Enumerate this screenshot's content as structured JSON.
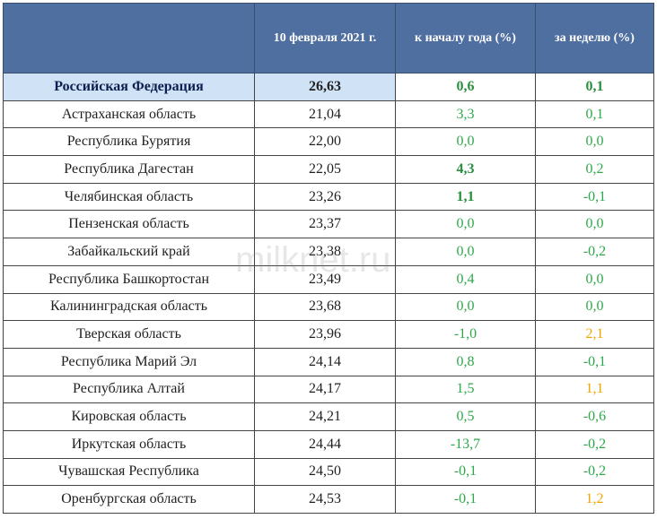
{
  "header": {
    "col_region": "",
    "col_price": "10 февраля 2021 г.",
    "col_year": "к началу года (%)",
    "col_week": "за неделю (%)"
  },
  "rows": [
    {
      "region": "Российская Федерация",
      "price": "26,63",
      "year": "0,6",
      "week": "0,1",
      "highlight": true,
      "year_style": "green-bold",
      "week_style": "green-bold"
    },
    {
      "region": "Астраханская область",
      "price": "21,04",
      "year": "3,3",
      "week": "0,1",
      "year_style": "green",
      "week_style": "green"
    },
    {
      "region": "Республика Бурятия",
      "price": "22,00",
      "year": "0,0",
      "week": "0,0",
      "year_style": "green",
      "week_style": "green"
    },
    {
      "region": "Республика Дагестан",
      "price": "22,05",
      "year": "4,3",
      "week": "0,2",
      "year_style": "green-bold",
      "week_style": "green"
    },
    {
      "region": "Челябинская область",
      "price": "23,26",
      "year": "1,1",
      "week": "-0,1",
      "year_style": "green-bold",
      "week_style": "green"
    },
    {
      "region": "Пензенская область",
      "price": "23,37",
      "year": "0,0",
      "week": "0,0",
      "year_style": "green",
      "week_style": "green"
    },
    {
      "region": "Забайкальский край",
      "price": "23,38",
      "year": "0,0",
      "week": "-0,2",
      "year_style": "green",
      "week_style": "green"
    },
    {
      "region": "Республика Башкортостан",
      "price": "23,49",
      "year": "0,4",
      "week": "0,0",
      "year_style": "green",
      "week_style": "green"
    },
    {
      "region": "Калининградская область",
      "price": "23,68",
      "year": "0,0",
      "week": "0,0",
      "year_style": "green",
      "week_style": "green"
    },
    {
      "region": "Тверская область",
      "price": "23,96",
      "year": "-1,0",
      "week": "2,1",
      "year_style": "green",
      "week_style": "orange"
    },
    {
      "region": "Республика Марий Эл",
      "price": "24,14",
      "year": "0,8",
      "week": "-0,1",
      "year_style": "green",
      "week_style": "green"
    },
    {
      "region": "Республика Алтай",
      "price": "24,17",
      "year": "1,5",
      "week": "1,1",
      "year_style": "green",
      "week_style": "orange"
    },
    {
      "region": "Кировская область",
      "price": "24,21",
      "year": "0,5",
      "week": "-0,6",
      "year_style": "green",
      "week_style": "green"
    },
    {
      "region": "Иркутская область",
      "price": "24,44",
      "year": "-13,7",
      "week": "-0,2",
      "year_style": "green",
      "week_style": "green"
    },
    {
      "region": "Чувашская Республика",
      "price": "24,50",
      "year": "-0,1",
      "week": "-0,2",
      "year_style": "green",
      "week_style": "green"
    },
    {
      "region": "Оренбургская область",
      "price": "24,53",
      "year": "-0,1",
      "week": "1,2",
      "year_style": "green",
      "week_style": "orange"
    }
  ],
  "watermark": "milknet.ru",
  "colors": {
    "header_bg": "#4f6fa0",
    "highlight_bg": "#cfe2f6",
    "green": "#2ea84a",
    "orange": "#f0a500"
  }
}
